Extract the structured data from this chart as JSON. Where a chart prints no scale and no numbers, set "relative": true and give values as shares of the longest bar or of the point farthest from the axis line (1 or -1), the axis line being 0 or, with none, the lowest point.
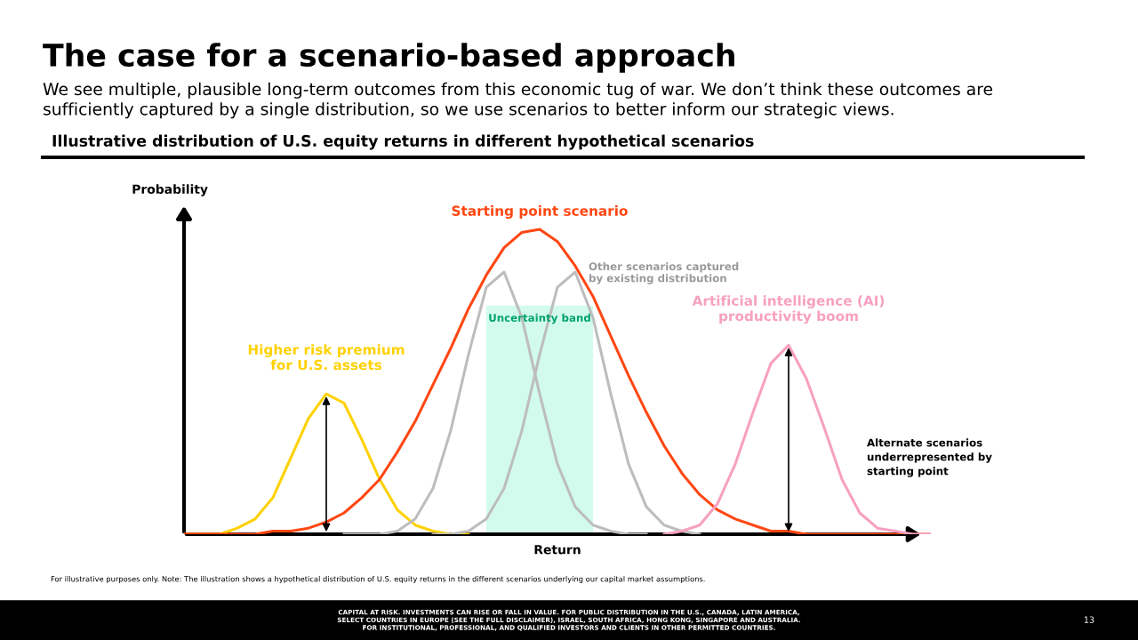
{
  "chart_data": {
    "type": "line",
    "relative": true,
    "title": "The case for a scenario-based approach",
    "subtitle": "We see multiple, plausible long-term outcomes from this economic tug of war. We don’t think these outcomes are\nsufficiently captured by a single distribution, so we use scenarios to better inform our strategic views.",
    "xlabel": "Return",
    "ylabel": "Probability",
    "categories": [
      null,
      null,
      null,
      null,
      null,
      null,
      null,
      null,
      null,
      null,
      null,
      null,
      null,
      null,
      null,
      null,
      null,
      null,
      null,
      null,
      null,
      null,
      null,
      null,
      null,
      null,
      null,
      null,
      null,
      null,
      null,
      null,
      null,
      null,
      null,
      null,
      null,
      null,
      null,
      null,
      null,
      null,
      null
    ],
    "series": [
      {
        "name": "Uncertainty band",
        "type": "area",
        "color": "#d2fbee",
        "values": [
          null,
          null,
          null,
          null,
          null,
          null,
          null,
          null,
          null,
          null,
          null,
          null,
          null,
          null,
          null,
          null,
          null,
          0.75,
          0.75,
          0.75,
          0.75,
          0.75,
          0.75,
          0.75,
          null,
          null,
          null,
          null,
          null,
          null,
          null,
          null,
          null,
          null,
          null,
          null,
          null,
          null,
          null,
          null,
          null,
          null,
          null
        ]
      },
      {
        "name": "Higher risk premium\nfor U.S. assets",
        "color": "#ffd100",
        "values": [
          0,
          0,
          0,
          0.02,
          0.05,
          0.12,
          0.25,
          0.38,
          0.46,
          0.43,
          0.31,
          0.18,
          0.08,
          0.03,
          0.01,
          0,
          0,
          null,
          null,
          null,
          null,
          null,
          null,
          null,
          null,
          null,
          null,
          null,
          null,
          null,
          null,
          null,
          null,
          null,
          null,
          null,
          null,
          null,
          null,
          null,
          null,
          null,
          null
        ]
      },
      {
        "color": "#bdbdbd",
        "values": [
          null,
          null,
          null,
          null,
          null,
          null,
          null,
          null,
          null,
          0,
          0,
          0,
          0.01,
          0.05,
          0.15,
          0.34,
          0.59,
          0.81,
          0.86,
          0.71,
          0.46,
          0.23,
          0.09,
          0.03,
          0.01,
          0,
          0,
          null,
          null,
          null,
          null,
          null,
          null,
          null,
          null,
          null,
          null,
          null,
          null,
          null,
          null,
          null,
          null
        ]
      },
      {
        "name": "Other scenarios captured\nby existing distribution",
        "color": "#bdbdbd",
        "values": [
          null,
          null,
          null,
          null,
          null,
          null,
          null,
          null,
          null,
          null,
          null,
          null,
          null,
          null,
          0,
          0,
          0.01,
          0.05,
          0.15,
          0.34,
          0.59,
          0.81,
          0.86,
          0.71,
          0.46,
          0.23,
          0.09,
          0.03,
          0.01,
          0,
          null,
          null,
          null,
          null,
          null,
          null,
          null,
          null,
          null,
          null,
          null,
          null,
          null
        ]
      },
      {
        "name": "Starting point scenario",
        "color": "#ff4713",
        "values": [
          0,
          0,
          0,
          0,
          0,
          0.01,
          0.01,
          0.02,
          0.04,
          0.07,
          0.12,
          0.18,
          0.27,
          0.37,
          0.49,
          0.61,
          0.74,
          0.85,
          0.94,
          0.99,
          1,
          0.96,
          0.88,
          0.78,
          0.65,
          0.52,
          0.4,
          0.29,
          0.2,
          0.13,
          0.08,
          0.05,
          0.03,
          0.01,
          0.01,
          0,
          0,
          0,
          0,
          0,
          0,
          0,
          0
        ]
      },
      {
        "name": "Artificial intelligence (AI)\nproductivity boom",
        "color": "#f7a0c0",
        "values": [
          null,
          null,
          null,
          null,
          null,
          null,
          null,
          null,
          null,
          null,
          null,
          null,
          null,
          null,
          null,
          null,
          null,
          null,
          null,
          null,
          null,
          null,
          null,
          null,
          null,
          null,
          null,
          0,
          0.01,
          0.03,
          0.1,
          0.23,
          0.4,
          0.56,
          0.62,
          0.51,
          0.35,
          0.18,
          0.07,
          0.02,
          0.01,
          0,
          0
        ]
      }
    ],
    "annotations": [
      "Illustrative distribution of U.S. equity returns in different hypothetical scenarios",
      "Alternate scenarios\nunderrepresented by\nstarting point",
      "For illustrative purposes only. Note: The illustration shows a hypothetical distribution of U.S. equity returns in the different scenarios underlying our capital market assumptions.",
      "CAPITAL AT RISK. INVESTMENTS CAN RISE OR FALL IN VALUE. FOR PUBLIC DISTRIBUTION IN THE U.S., CANADA, LATIN AMERICA,\nSELECT COUNTRIES IN EUROPE (SEE THE FULL DISCLAIMER), ISRAEL, SOUTH AFRICA, HONG KONG, SINGAPORE AND AUSTRALIA.\nFOR INSTITUTIONAL, PROFESSIONAL, AND QUALIFIED INVESTORS AND CLIENTS IN OTHER PERMITTED COUNTRIES.",
      "13"
    ]
  }
}
